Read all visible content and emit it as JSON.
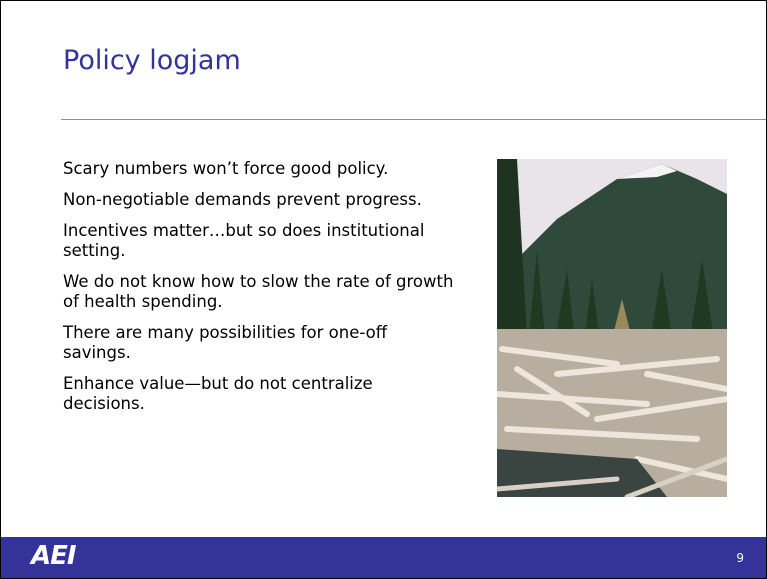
{
  "slide": {
    "title": "Policy logjam",
    "bullets": [
      "Scary numbers won’t force good policy.",
      "Non-negotiable demands prevent progress.",
      "Incentives matter…but so does institutional setting.",
      "We do not know how to slow the rate of growth of health spending.",
      "There are many possibilities for one-off savings.",
      "Enhance value—but do not centralize decisions."
    ],
    "footer": {
      "logo": "AEI",
      "page_number": "9"
    }
  }
}
